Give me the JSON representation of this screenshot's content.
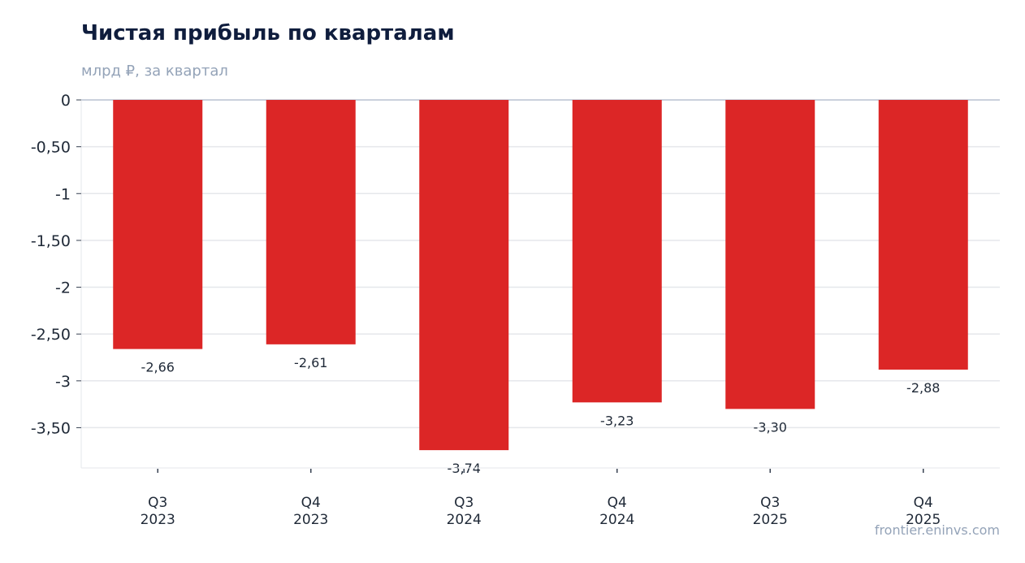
{
  "header": {
    "title": "Чистая прибыль по кварталам",
    "subtitle": "млрд ₽, за квартал"
  },
  "watermark": "frontier.eninvs.com",
  "chart_data": {
    "type": "bar",
    "title": "Чистая прибыль по кварталам",
    "subtitle": "млрд ₽, за квартал",
    "xlabel": "",
    "ylabel": "",
    "categories": [
      [
        "Q3",
        "2023"
      ],
      [
        "Q4",
        "2023"
      ],
      [
        "Q3",
        "2024"
      ],
      [
        "Q4",
        "2024"
      ],
      [
        "Q3",
        "2025"
      ],
      [
        "Q4",
        "2025"
      ]
    ],
    "values": [
      -2.66,
      -2.61,
      -3.74,
      -3.23,
      -3.3,
      -2.88
    ],
    "value_labels": [
      "-2,66",
      "-2,61",
      "-3,74",
      "-3,23",
      "-3,30",
      "-2,88"
    ],
    "yticks": [
      0,
      -0.5,
      -1,
      -1.5,
      -2,
      -2.5,
      -3,
      -3.5
    ],
    "ytick_labels": [
      "0",
      "-0,50",
      "-1",
      "-1,50",
      "-2",
      "-2,50",
      "-3",
      "-3,50"
    ],
    "ylim": [
      -3.93,
      0
    ],
    "grid": true,
    "legend": "none",
    "colors": {
      "bar": "#dc2626",
      "grid": "#e5e7eb",
      "zero_line": "#94a3b8",
      "text": "#1f2937"
    }
  }
}
